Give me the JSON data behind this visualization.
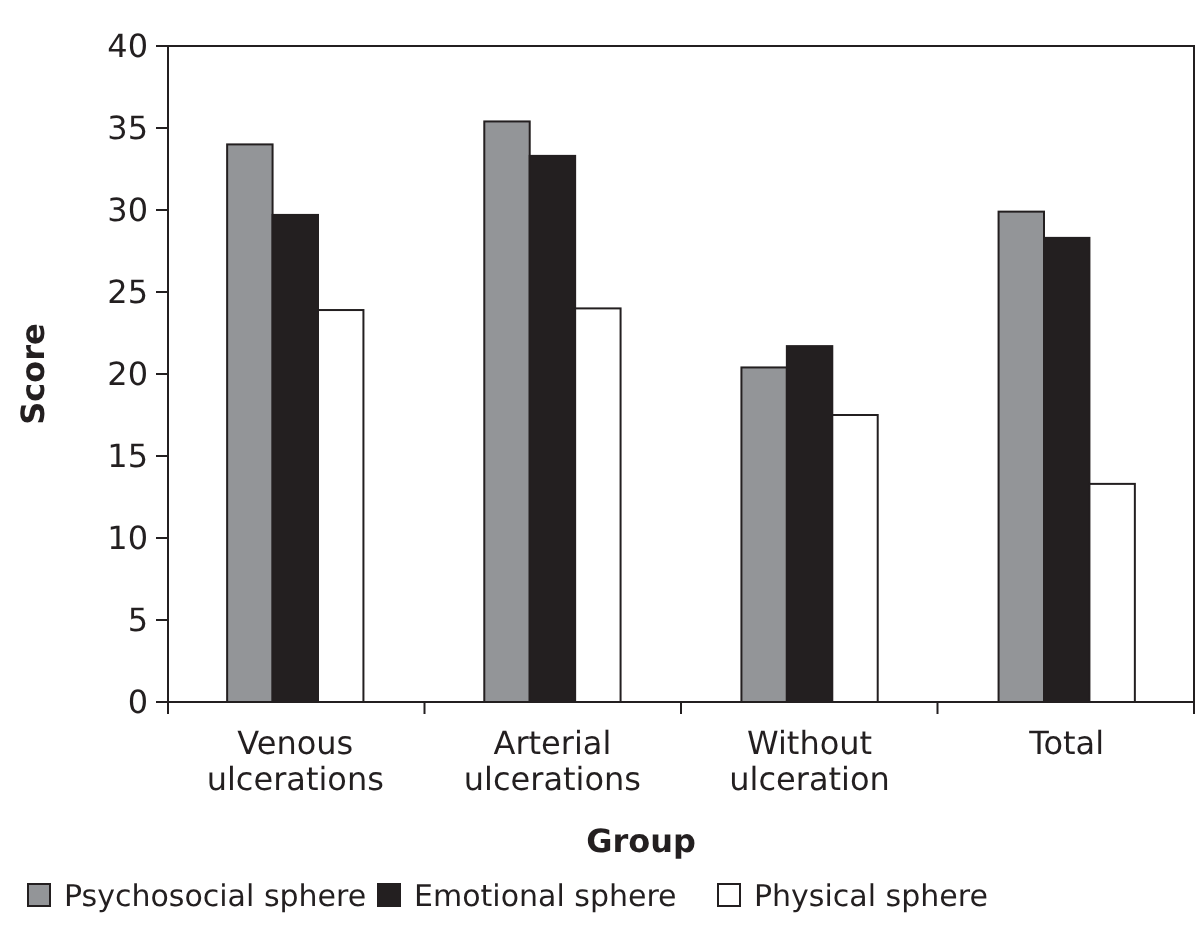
{
  "chart_data": {
    "type": "bar",
    "xlabel": "Group",
    "ylabel": "Score",
    "categories": [
      "Venous ulcerations",
      "Arterial ulcerations",
      "Without ulceration",
      "Total"
    ],
    "series": [
      {
        "name": "Psychosocial sphere",
        "color": "#939598",
        "values": [
          34.0,
          35.4,
          20.4,
          29.9
        ]
      },
      {
        "name": "Emotional sphere",
        "color": "#231f20",
        "values": [
          29.7,
          33.3,
          21.7,
          28.3
        ]
      },
      {
        "name": "Physical sphere",
        "color": "#ffffff",
        "values": [
          23.9,
          24.0,
          17.5,
          13.3
        ]
      }
    ],
    "ylim": [
      0,
      40
    ],
    "yticks": [
      0,
      5,
      10,
      15,
      20,
      25,
      30,
      35,
      40
    ],
    "grid": false,
    "legend": "bottom"
  }
}
